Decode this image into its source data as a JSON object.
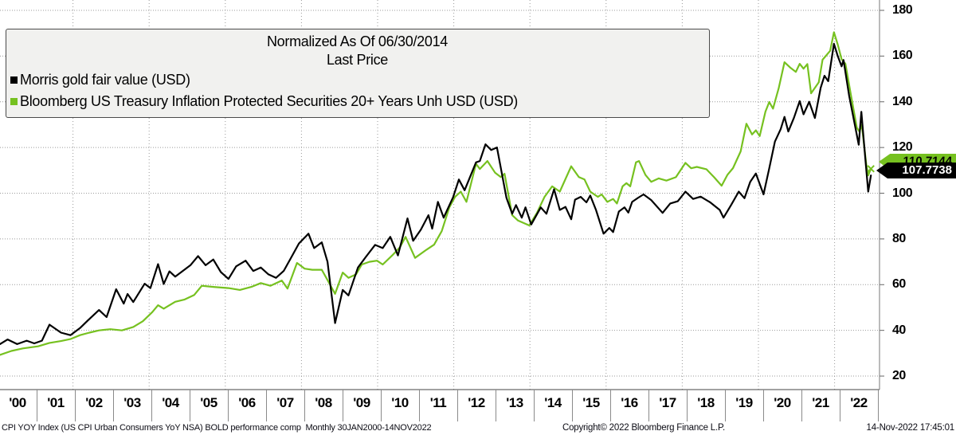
{
  "legend_box": {
    "title_line1": "Normalized As Of 06/30/2014",
    "title_line2": "Last Price"
  },
  "price_tags": [
    {
      "series": "Bloomberg US Treasury Inflation Protected Securities 20+ Years Unh USD (USD)",
      "value": "110.7144",
      "bg": "#76c120",
      "text_color": "#000000"
    },
    {
      "series": "Morris gold fair value (USD)",
      "value": "107.7738",
      "bg": "#000000",
      "text_color": "#ffffff"
    }
  ],
  "footer": {
    "left": "CPI YOY Index (US CPI Urban Consumers YoY NSA) BOLD performance comp  Monthly 30JAN2000-14NOV2022",
    "center": "Copyright© 2022 Bloomberg Finance L.P.",
    "right": "14-Nov-2022 17:45:01"
  },
  "chart_data": {
    "type": "line",
    "title": "Normalized As Of 06/30/2014",
    "subtitle": "Last Price",
    "legend_position": "top-left",
    "grid": "dotted",
    "x_axis": {
      "labels": [
        "'00",
        "'01",
        "'02",
        "'03",
        "'04",
        "'05",
        "'06",
        "'07",
        "'08",
        "'09",
        "'10",
        "'11",
        "'12",
        "'13",
        "'14",
        "'15",
        "'16",
        "'17",
        "'18",
        "'19",
        "'20",
        "'21",
        "'22"
      ],
      "start_year": 2000,
      "end_year": 2023,
      "grid_years": [
        2002,
        2004,
        2006,
        2008,
        2010,
        2012,
        2014,
        2016,
        2018,
        2020,
        2022
      ],
      "frequency": "Monthly",
      "range_label": "30JAN2000-14NOV2022"
    },
    "y_axis": {
      "ticks": [
        180,
        160,
        140,
        120,
        100,
        80,
        60,
        40,
        20
      ],
      "top": 180,
      "bottom": 20,
      "side": "right"
    },
    "series": [
      {
        "name": "Morris gold fair value (USD)",
        "color": "#000000",
        "last_price": 107.7738,
        "points": [
          [
            2000.0,
            34
          ],
          [
            2000.2,
            36
          ],
          [
            2000.45,
            34
          ],
          [
            2000.7,
            35.5
          ],
          [
            2000.9,
            34.3
          ],
          [
            2001.1,
            35.5
          ],
          [
            2001.3,
            42.5
          ],
          [
            2001.6,
            39
          ],
          [
            2001.85,
            37.9
          ],
          [
            2002.1,
            41
          ],
          [
            2002.3,
            44.2
          ],
          [
            2002.6,
            48.9
          ],
          [
            2002.8,
            45.8
          ],
          [
            2003.05,
            58
          ],
          [
            2003.25,
            51.7
          ],
          [
            2003.35,
            55.9
          ],
          [
            2003.5,
            52.4
          ],
          [
            2003.8,
            60.4
          ],
          [
            2003.95,
            58.5
          ],
          [
            2004.15,
            69
          ],
          [
            2004.3,
            60.3
          ],
          [
            2004.45,
            65.8
          ],
          [
            2004.6,
            63.5
          ],
          [
            2004.8,
            66
          ],
          [
            2005.0,
            68.5
          ],
          [
            2005.2,
            72.5
          ],
          [
            2005.4,
            68.5
          ],
          [
            2005.6,
            71
          ],
          [
            2005.8,
            65.5
          ],
          [
            2006.0,
            62.5
          ],
          [
            2006.2,
            68
          ],
          [
            2006.45,
            70.5
          ],
          [
            2006.65,
            66
          ],
          [
            2006.85,
            67.5
          ],
          [
            2007.05,
            64.5
          ],
          [
            2007.25,
            63
          ],
          [
            2007.45,
            66
          ],
          [
            2007.65,
            72
          ],
          [
            2007.85,
            78
          ],
          [
            2008.1,
            82.3
          ],
          [
            2008.25,
            76
          ],
          [
            2008.45,
            78.5
          ],
          [
            2008.6,
            70
          ],
          [
            2008.8,
            43.2
          ],
          [
            2009.0,
            57.7
          ],
          [
            2009.15,
            55.3
          ],
          [
            2009.4,
            67.5
          ],
          [
            2009.6,
            72
          ],
          [
            2009.85,
            77.4
          ],
          [
            2010.05,
            76
          ],
          [
            2010.25,
            80.9
          ],
          [
            2010.45,
            72.8
          ],
          [
            2010.7,
            89
          ],
          [
            2010.85,
            79.2
          ],
          [
            2011.05,
            84
          ],
          [
            2011.25,
            90.4
          ],
          [
            2011.35,
            84.5
          ],
          [
            2011.5,
            96.2
          ],
          [
            2011.65,
            89.3
          ],
          [
            2011.9,
            98.3
          ],
          [
            2012.05,
            106
          ],
          [
            2012.2,
            101.3
          ],
          [
            2012.5,
            113.5
          ],
          [
            2012.6,
            114.1
          ],
          [
            2012.75,
            121.4
          ],
          [
            2012.9,
            118.9
          ],
          [
            2013.05,
            120
          ],
          [
            2013.3,
            98
          ],
          [
            2013.45,
            91
          ],
          [
            2013.55,
            94.8
          ],
          [
            2013.7,
            89.3
          ],
          [
            2013.8,
            93.8
          ],
          [
            2013.95,
            86.3
          ],
          [
            2014.2,
            93.8
          ],
          [
            2014.35,
            91
          ],
          [
            2014.55,
            101.7
          ],
          [
            2014.7,
            92.7
          ],
          [
            2014.85,
            94
          ],
          [
            2015.0,
            88.6
          ],
          [
            2015.1,
            97.2
          ],
          [
            2015.25,
            98.4
          ],
          [
            2015.4,
            96
          ],
          [
            2015.5,
            99
          ],
          [
            2015.65,
            92.7
          ],
          [
            2015.85,
            82.3
          ],
          [
            2016.0,
            84.8
          ],
          [
            2016.1,
            83
          ],
          [
            2016.25,
            92
          ],
          [
            2016.4,
            93.8
          ],
          [
            2016.5,
            91.5
          ],
          [
            2016.6,
            96.2
          ],
          [
            2016.75,
            97.9
          ],
          [
            2016.9,
            99.5
          ],
          [
            2017.1,
            97
          ],
          [
            2017.4,
            91.4
          ],
          [
            2017.6,
            95.5
          ],
          [
            2017.8,
            96.5
          ],
          [
            2018.0,
            100.7
          ],
          [
            2018.2,
            97.5
          ],
          [
            2018.4,
            98.5
          ],
          [
            2018.65,
            96
          ],
          [
            2018.9,
            92.7
          ],
          [
            2019.0,
            89.3
          ],
          [
            2019.2,
            94.9
          ],
          [
            2019.4,
            100.7
          ],
          [
            2019.55,
            97.8
          ],
          [
            2019.7,
            105
          ],
          [
            2019.85,
            108.6
          ],
          [
            2020.05,
            99.5
          ],
          [
            2020.2,
            110.9
          ],
          [
            2020.35,
            122.6
          ],
          [
            2020.5,
            128
          ],
          [
            2020.6,
            133.4
          ],
          [
            2020.7,
            127
          ],
          [
            2020.85,
            133
          ],
          [
            2021.0,
            140.3
          ],
          [
            2021.1,
            134.5
          ],
          [
            2021.25,
            140
          ],
          [
            2021.4,
            132.9
          ],
          [
            2021.55,
            146.1
          ],
          [
            2021.65,
            151.4
          ],
          [
            2021.75,
            149
          ],
          [
            2021.9,
            165.4
          ],
          [
            2022.0,
            160
          ],
          [
            2022.1,
            155.5
          ],
          [
            2022.15,
            158.3
          ],
          [
            2022.3,
            142.6
          ],
          [
            2022.45,
            129.8
          ],
          [
            2022.55,
            121.2
          ],
          [
            2022.62,
            135.6
          ],
          [
            2022.72,
            115.8
          ],
          [
            2022.8,
            100.7
          ],
          [
            2022.87,
            107.77
          ]
        ]
      },
      {
        "name": "Bloomberg US Treasury Inflation Protected Securities 20+ Years Unh USD (USD)",
        "color": "#76c120",
        "last_price": 110.7144,
        "points": [
          [
            2000.0,
            29.3
          ],
          [
            2000.3,
            31
          ],
          [
            2000.6,
            32.1
          ],
          [
            2001.0,
            33
          ],
          [
            2001.3,
            34.5
          ],
          [
            2001.6,
            35.3
          ],
          [
            2001.85,
            36.2
          ],
          [
            2002.1,
            37.9
          ],
          [
            2002.35,
            39
          ],
          [
            2002.6,
            40
          ],
          [
            2002.9,
            40.5
          ],
          [
            2003.2,
            40
          ],
          [
            2003.5,
            41.5
          ],
          [
            2003.75,
            44
          ],
          [
            2004.0,
            48
          ],
          [
            2004.15,
            51
          ],
          [
            2004.3,
            49.5
          ],
          [
            2004.6,
            52.5
          ],
          [
            2004.85,
            53.5
          ],
          [
            2005.1,
            55.5
          ],
          [
            2005.3,
            59.5
          ],
          [
            2005.6,
            59
          ],
          [
            2006.0,
            58.5
          ],
          [
            2006.3,
            57.7
          ],
          [
            2006.6,
            59
          ],
          [
            2006.85,
            60.7
          ],
          [
            2007.1,
            59.5
          ],
          [
            2007.4,
            61.8
          ],
          [
            2007.55,
            58.3
          ],
          [
            2007.8,
            69.5
          ],
          [
            2008.0,
            67
          ],
          [
            2008.2,
            66.5
          ],
          [
            2008.45,
            66.5
          ],
          [
            2008.6,
            62
          ],
          [
            2008.8,
            56
          ],
          [
            2009.0,
            65.3
          ],
          [
            2009.15,
            63
          ],
          [
            2009.35,
            64.5
          ],
          [
            2009.5,
            68.8
          ],
          [
            2009.7,
            70
          ],
          [
            2009.9,
            70.5
          ],
          [
            2010.05,
            68.8
          ],
          [
            2010.3,
            72.8
          ],
          [
            2010.5,
            76.3
          ],
          [
            2010.65,
            80.9
          ],
          [
            2010.9,
            71.7
          ],
          [
            2011.2,
            75.3
          ],
          [
            2011.4,
            77.5
          ],
          [
            2011.6,
            83.4
          ],
          [
            2011.8,
            93.8
          ],
          [
            2011.95,
            98.4
          ],
          [
            2012.1,
            100.7
          ],
          [
            2012.25,
            96.2
          ],
          [
            2012.5,
            112.9
          ],
          [
            2012.6,
            110.6
          ],
          [
            2012.8,
            114.1
          ],
          [
            2013.0,
            109
          ],
          [
            2013.15,
            107.1
          ],
          [
            2013.25,
            108.5
          ],
          [
            2013.45,
            90.4
          ],
          [
            2013.6,
            88.1
          ],
          [
            2013.9,
            85.9
          ],
          [
            2014.1,
            91.4
          ],
          [
            2014.3,
            98.4
          ],
          [
            2014.5,
            103
          ],
          [
            2014.7,
            100.7
          ],
          [
            2015.0,
            111.8
          ],
          [
            2015.2,
            107.1
          ],
          [
            2015.35,
            106
          ],
          [
            2015.5,
            100.7
          ],
          [
            2015.7,
            98.4
          ],
          [
            2015.8,
            99.5
          ],
          [
            2015.95,
            96.2
          ],
          [
            2016.1,
            97.5
          ],
          [
            2016.2,
            95.5
          ],
          [
            2016.35,
            103
          ],
          [
            2016.45,
            104.4
          ],
          [
            2016.55,
            103
          ],
          [
            2016.7,
            113.5
          ],
          [
            2016.78,
            114.1
          ],
          [
            2016.95,
            108
          ],
          [
            2017.1,
            105
          ],
          [
            2017.3,
            106.5
          ],
          [
            2017.5,
            105.5
          ],
          [
            2017.75,
            107
          ],
          [
            2018.0,
            113.3
          ],
          [
            2018.15,
            110.9
          ],
          [
            2018.3,
            111.5
          ],
          [
            2018.55,
            110.5
          ],
          [
            2018.75,
            107
          ],
          [
            2018.95,
            103.3
          ],
          [
            2019.1,
            108
          ],
          [
            2019.25,
            111
          ],
          [
            2019.45,
            118.3
          ],
          [
            2019.6,
            130.4
          ],
          [
            2019.75,
            125.7
          ],
          [
            2019.85,
            127.5
          ],
          [
            2019.95,
            125
          ],
          [
            2020.1,
            135.7
          ],
          [
            2020.2,
            139.9
          ],
          [
            2020.3,
            137
          ],
          [
            2020.45,
            146
          ],
          [
            2020.6,
            157.3
          ],
          [
            2020.75,
            155
          ],
          [
            2020.9,
            153.1
          ],
          [
            2021.0,
            156.6
          ],
          [
            2021.1,
            154.5
          ],
          [
            2021.2,
            156.5
          ],
          [
            2021.3,
            143.7
          ],
          [
            2021.5,
            148.5
          ],
          [
            2021.6,
            158.4
          ],
          [
            2021.8,
            162.3
          ],
          [
            2021.9,
            170.4
          ],
          [
            2022.0,
            165
          ],
          [
            2022.1,
            158.6
          ],
          [
            2022.2,
            156.6
          ],
          [
            2022.35,
            142.6
          ],
          [
            2022.5,
            128.7
          ],
          [
            2022.57,
            127
          ],
          [
            2022.63,
            130
          ],
          [
            2022.75,
            112.3
          ],
          [
            2022.8,
            107.8
          ],
          [
            2022.87,
            110.71
          ]
        ]
      }
    ]
  }
}
